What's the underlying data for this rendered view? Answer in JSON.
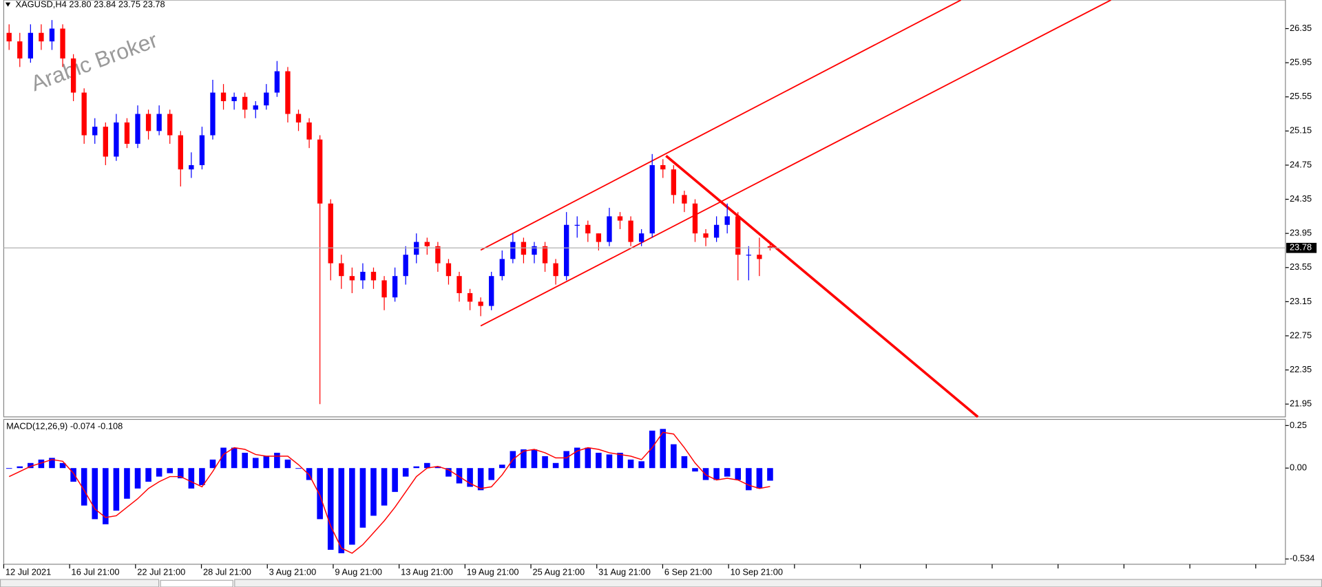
{
  "header": {
    "symbol": "XAGUSD,H4",
    "quote": [
      "23.80",
      "23.84",
      "23.75",
      "23.78"
    ]
  },
  "watermark": "Arabic Broker",
  "chart_data": [
    {
      "type": "candlestick",
      "up_color": "#0000ff",
      "down_color": "#ff0000",
      "open": [
        26.3,
        26.2,
        26.0,
        26.3,
        26.2,
        26.35,
        26.0,
        25.6,
        25.1,
        25.2,
        24.85,
        25.25,
        25.0,
        25.35,
        25.15,
        25.35,
        25.1,
        24.7,
        24.75,
        25.1,
        25.6,
        25.5,
        25.55,
        25.4,
        25.45,
        25.6,
        25.85,
        25.35,
        25.25,
        25.05,
        24.3,
        23.6,
        23.45,
        23.4,
        23.5,
        23.4,
        23.2,
        23.45,
        23.7,
        23.85,
        23.8,
        23.6,
        23.45,
        23.25,
        23.15,
        23.1,
        23.45,
        23.65,
        23.85,
        23.7,
        23.8,
        23.6,
        23.45,
        24.05,
        24.05,
        23.95,
        23.85,
        24.15,
        24.1,
        23.85,
        23.95,
        24.75,
        24.7,
        24.4,
        24.3,
        23.95,
        23.9,
        24.05,
        24.15,
        23.7,
        23.7,
        23.8
      ],
      "high": [
        26.4,
        26.3,
        26.4,
        26.4,
        26.45,
        26.4,
        26.05,
        25.65,
        25.3,
        25.25,
        25.35,
        25.3,
        25.45,
        25.4,
        25.45,
        25.4,
        25.15,
        24.9,
        25.2,
        25.75,
        25.7,
        25.6,
        25.6,
        25.5,
        25.7,
        25.97,
        25.9,
        25.4,
        25.3,
        25.1,
        24.35,
        23.7,
        23.55,
        23.6,
        23.55,
        23.45,
        23.55,
        23.8,
        23.95,
        23.9,
        23.85,
        23.65,
        23.5,
        23.3,
        23.2,
        23.5,
        23.75,
        23.95,
        23.9,
        23.85,
        23.85,
        23.65,
        24.2,
        24.15,
        24.1,
        23.95,
        24.25,
        24.2,
        24.15,
        24.0,
        24.88,
        24.82,
        24.75,
        24.45,
        24.35,
        24.0,
        24.15,
        24.3,
        24.2,
        23.8,
        23.9,
        23.84
      ],
      "low": [
        26.1,
        25.9,
        25.95,
        26.1,
        26.1,
        25.9,
        25.5,
        25.0,
        25.0,
        24.75,
        24.8,
        24.95,
        24.95,
        25.05,
        25.1,
        25.0,
        24.5,
        24.6,
        24.7,
        25.05,
        25.4,
        25.4,
        25.3,
        25.3,
        25.4,
        25.55,
        25.25,
        25.15,
        24.95,
        21.95,
        23.4,
        23.3,
        23.25,
        23.3,
        23.3,
        23.05,
        23.15,
        23.35,
        23.6,
        23.7,
        23.5,
        23.35,
        23.15,
        23.05,
        22.98,
        23.05,
        23.4,
        23.6,
        23.6,
        23.6,
        23.5,
        23.35,
        23.4,
        23.9,
        23.85,
        23.75,
        23.8,
        24.0,
        23.8,
        23.8,
        23.9,
        24.6,
        24.3,
        24.2,
        23.85,
        23.8,
        23.85,
        23.95,
        23.4,
        23.4,
        23.45,
        23.75
      ],
      "close": [
        26.2,
        26.0,
        26.3,
        26.2,
        26.35,
        26.0,
        25.6,
        25.1,
        25.2,
        24.85,
        25.25,
        25.0,
        25.35,
        25.15,
        25.35,
        25.1,
        24.7,
        24.75,
        25.1,
        25.6,
        25.5,
        25.55,
        25.4,
        25.45,
        25.6,
        25.85,
        25.35,
        25.25,
        25.05,
        24.3,
        23.6,
        23.45,
        23.4,
        23.5,
        23.4,
        23.2,
        23.45,
        23.7,
        23.85,
        23.8,
        23.6,
        23.45,
        23.25,
        23.15,
        23.1,
        23.45,
        23.65,
        23.85,
        23.7,
        23.8,
        23.6,
        23.45,
        24.05,
        24.05,
        23.95,
        23.85,
        24.15,
        24.1,
        23.85,
        23.95,
        24.75,
        24.7,
        24.4,
        24.3,
        23.95,
        23.9,
        24.05,
        24.15,
        23.7,
        23.7,
        23.65,
        23.78
      ],
      "ylim": [
        21.8,
        26.685
      ],
      "yticks": [
        26.35,
        25.95,
        25.55,
        25.15,
        24.75,
        24.35,
        23.95,
        23.55,
        23.15,
        22.75,
        22.35,
        21.95
      ],
      "xticks": [
        "12 Jul 2021",
        "16 Jul 21:00",
        "22 Jul 21:00",
        "28 Jul 21:00",
        "3 Aug 21:00",
        "9 Aug 21:00",
        "13 Aug 21:00",
        "19 Aug 21:00",
        "25 Aug 21:00",
        "31 Aug 21:00",
        "6 Sep 21:00",
        "10 Sep 21:00"
      ]
    },
    {
      "type": "macd",
      "title": "MACD(12,26,9)",
      "histogram": {
        "color": "#0000ff",
        "values": [
          0.0,
          0.01,
          0.03,
          0.05,
          0.06,
          0.03,
          -0.08,
          -0.22,
          -0.3,
          -0.33,
          -0.25,
          -0.18,
          -0.12,
          -0.08,
          -0.05,
          -0.03,
          -0.06,
          -0.12,
          -0.1,
          0.05,
          0.12,
          0.12,
          0.09,
          0.06,
          0.07,
          0.09,
          0.05,
          0.0,
          -0.07,
          -0.3,
          -0.48,
          -0.5,
          -0.45,
          -0.35,
          -0.28,
          -0.22,
          -0.14,
          -0.05,
          0.01,
          0.03,
          0.01,
          -0.05,
          -0.09,
          -0.11,
          -0.13,
          -0.07,
          0.02,
          0.1,
          0.11,
          0.11,
          0.07,
          0.03,
          0.1,
          0.12,
          0.12,
          0.09,
          0.08,
          0.09,
          0.05,
          0.04,
          0.22,
          0.23,
          0.14,
          0.07,
          -0.02,
          -0.07,
          -0.07,
          -0.05,
          -0.07,
          -0.13,
          -0.12,
          -0.074
        ]
      },
      "signal": {
        "color": "#ff0000",
        "values": [
          -0.05,
          -0.02,
          0.01,
          0.03,
          0.05,
          0.04,
          -0.03,
          -0.13,
          -0.24,
          -0.29,
          -0.28,
          -0.23,
          -0.18,
          -0.12,
          -0.08,
          -0.05,
          -0.05,
          -0.08,
          -0.11,
          -0.02,
          0.08,
          0.12,
          0.11,
          0.08,
          0.07,
          0.07,
          0.07,
          0.02,
          -0.04,
          -0.16,
          -0.34,
          -0.47,
          -0.5,
          -0.45,
          -0.38,
          -0.31,
          -0.23,
          -0.14,
          -0.05,
          0.0,
          0.01,
          -0.01,
          -0.05,
          -0.09,
          -0.12,
          -0.11,
          -0.04,
          0.05,
          0.1,
          0.11,
          0.09,
          0.06,
          0.06,
          0.1,
          0.12,
          0.11,
          0.09,
          0.08,
          0.07,
          0.05,
          0.12,
          0.21,
          0.2,
          0.12,
          0.03,
          -0.04,
          -0.07,
          -0.06,
          -0.07,
          -0.1,
          -0.12,
          -0.108
        ]
      },
      "ylim": [
        -0.565,
        0.286
      ],
      "yticks": [
        0.25,
        {
          "value": 0,
          "label": "0.00"
        },
        -0.534
      ]
    }
  ]
}
